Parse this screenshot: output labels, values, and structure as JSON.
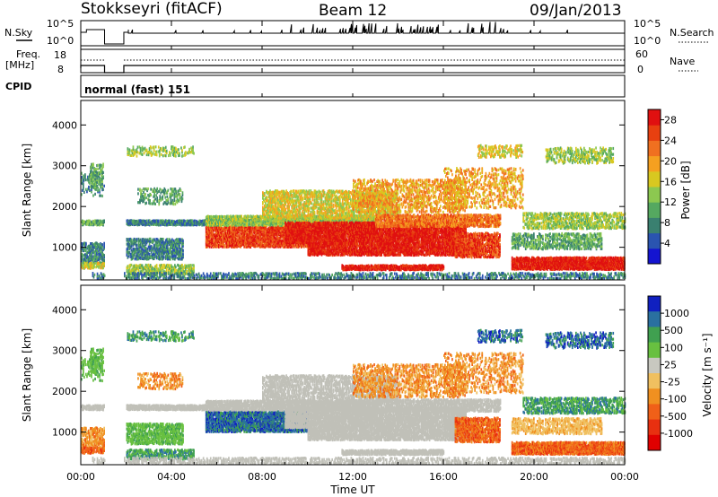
{
  "header": {
    "station": "Stokkseyri (fitACF)",
    "beam": "Beam 12",
    "date": "09/Jan/2013"
  },
  "colors": {
    "line": "#000000",
    "ground_scatter": "#c0c0b8",
    "power_scale": [
      "#1414d0",
      "#2a54b0",
      "#3a8070",
      "#55a860",
      "#8cc850",
      "#d8c820",
      "#f5a020",
      "#f07020",
      "#e84010",
      "#e01010"
    ],
    "velocity_scale": [
      "#1020c0",
      "#2a70a0",
      "#40a050",
      "#68c040",
      "#c8c8c0",
      "#f0c060",
      "#f09020",
      "#f06018",
      "#e83010",
      "#e00000"
    ]
  },
  "strip_panels": {
    "nsky": {
      "label": "N.Sky",
      "right_label": "N.Search",
      "left_ticks": [
        "10^5",
        "10^0"
      ],
      "right_ticks": [
        "10^5",
        "10^0"
      ]
    },
    "freq": {
      "label_top": "Freq.",
      "label_bottom": "[MHz]",
      "right_label": "Nave",
      "left_ticks": [
        "18",
        "8"
      ],
      "right_ticks": [
        "60",
        "0"
      ]
    },
    "cpid": {
      "label": "CPID",
      "text": "normal (fast) 151"
    }
  },
  "chart_data": [
    {
      "type": "heatmap",
      "name": "power",
      "xlabel": "Time UT",
      "ylabel": "Slant Range [km]",
      "x_ticks": [
        "00:00",
        "04:00",
        "08:00",
        "12:00",
        "16:00",
        "20:00",
        "00:00"
      ],
      "x_range_hours": [
        0,
        24
      ],
      "y_ticks": [
        1000,
        2000,
        3000,
        4000
      ],
      "ylim": [
        200,
        4600
      ],
      "colorbar": {
        "label": "Power [dB]",
        "ticks": [
          4,
          8,
          12,
          16,
          20,
          24,
          28
        ],
        "range": [
          0,
          30
        ]
      }
    },
    {
      "type": "heatmap",
      "name": "velocity",
      "xlabel": "Time UT",
      "ylabel": "Slant Range [km]",
      "x_ticks": [
        "00:00",
        "04:00",
        "08:00",
        "12:00",
        "16:00",
        "20:00",
        "00:00"
      ],
      "x_range_hours": [
        0,
        24
      ],
      "y_ticks": [
        1000,
        2000,
        3000,
        4000
      ],
      "ylim": [
        200,
        4600
      ],
      "colorbar": {
        "label": "Velocity [m s⁻¹]",
        "ticks": [
          "1000",
          "500",
          "100",
          "25",
          "-25",
          "-100",
          "-500",
          "-1000"
        ]
      }
    }
  ]
}
